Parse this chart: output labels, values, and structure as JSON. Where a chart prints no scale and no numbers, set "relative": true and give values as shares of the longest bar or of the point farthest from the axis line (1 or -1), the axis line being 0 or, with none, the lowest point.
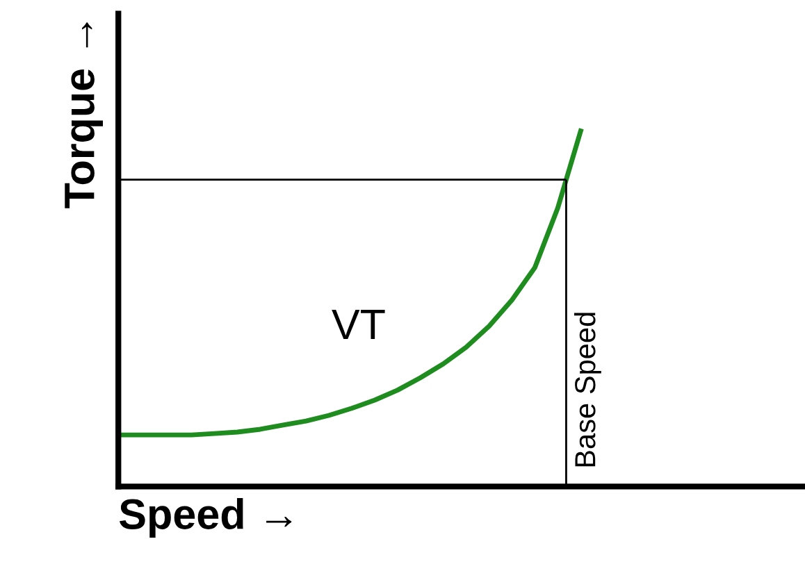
{
  "chart_data": {
    "type": "line",
    "relative": true,
    "xlabel": "Speed →",
    "ylabel": "Torque →",
    "categories": [
      null,
      null,
      null,
      null,
      null,
      null,
      null,
      null,
      null,
      null,
      null,
      null,
      null,
      null,
      null,
      null,
      null,
      null,
      null,
      null,
      null,
      null,
      null,
      null,
      null,
      null,
      null,
      null,
      null,
      null
    ],
    "series": [
      {
        "name": "VT",
        "color": "#1e8c1e",
        "values": [
          0.145,
          0.145,
          0.145,
          0.145,
          0.149,
          0.153,
          0.161,
          0.173,
          0.184,
          0.2,
          0.22,
          0.243,
          0.271,
          0.306,
          0.345,
          0.392,
          0.451,
          0.525,
          0.616,
          0.784,
          1.0,
          null,
          null,
          null,
          null,
          null,
          null,
          null,
          null,
          null
        ]
      }
    ],
    "ref_lines": [
      {
        "axis": "y",
        "value": 0.863,
        "color": "#000000"
      }
    ],
    "annotations": [
      "Base Speed"
    ],
    "legend": false,
    "marker": "none",
    "line_style": "solid"
  }
}
